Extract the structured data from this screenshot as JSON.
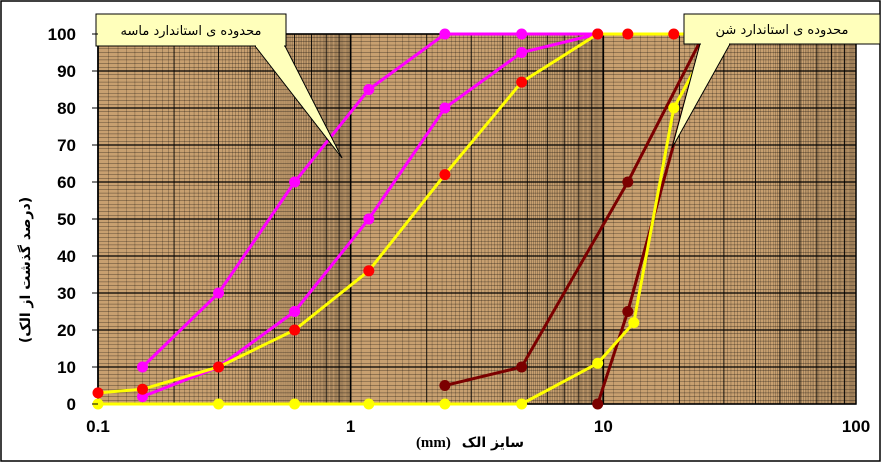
{
  "chart_data": {
    "type": "scatter",
    "x_scale": "log",
    "xlim": [
      0.1,
      100
    ],
    "ylim": [
      0,
      100
    ],
    "xlabel_text": "سایز الک",
    "xlabel_unit": "(mm)",
    "ylabel": "(درصد گذشت از الک)",
    "x_ticks": [
      {
        "value": 0.1,
        "label": "0.1"
      },
      {
        "value": 1,
        "label": "1"
      },
      {
        "value": 10,
        "label": "10"
      },
      {
        "value": 100,
        "label": "100"
      }
    ],
    "y_ticks": [
      0,
      10,
      20,
      30,
      40,
      50,
      60,
      70,
      80,
      90,
      100
    ],
    "grid": true,
    "colors": {
      "plot_background": "#c8a070",
      "grid": "#000000",
      "sand_limit": "#ff00ff",
      "aggregate": "#ffff00",
      "aggregate_marker_red": "#ff0000",
      "gravel_limit": "#7b0000",
      "callout_fill": "#ffffbb"
    },
    "series": [
      {
        "color": "#ff00ff",
        "marker_color": "#ff00ff",
        "x": [
          0.15,
          0.3,
          0.6,
          1.18,
          2.36,
          4.75,
          9.5
        ],
        "y": [
          10,
          30,
          60,
          85,
          100,
          100,
          100
        ]
      },
      {
        "color": "#ff00ff",
        "marker_color": "#ff00ff",
        "x": [
          0.15,
          0.3,
          0.6,
          1.18,
          2.36,
          4.75,
          9.5
        ],
        "y": [
          2,
          10,
          25,
          50,
          80,
          95,
          100
        ]
      },
      {
        "color": "#ffff00",
        "marker_color": "#ff0000",
        "x": [
          0.1,
          0.15,
          0.3,
          0.6,
          1.18,
          2.36,
          4.75,
          9.5,
          12.5,
          19,
          25
        ],
        "y": [
          3,
          4,
          10,
          20,
          36,
          62,
          87,
          100,
          100,
          100,
          100
        ]
      },
      {
        "color": "#7b0000",
        "marker_color": "#7b0000",
        "x": [
          2.36,
          4.75,
          12.5,
          25
        ],
        "y": [
          5,
          10,
          60,
          100
        ]
      },
      {
        "color": "#7b0000",
        "marker_color": "#7b0000",
        "x": [
          9.5,
          12.5,
          25
        ],
        "y": [
          0,
          25,
          100
        ]
      },
      {
        "color": "#ffff00",
        "marker_color": "#ffff00",
        "x": [
          0.1,
          0.3,
          0.6,
          1.18,
          2.36,
          4.75,
          9.5,
          13.2,
          19,
          25,
          28
        ],
        "y": [
          0,
          0,
          0,
          0,
          0,
          0,
          11,
          22,
          80,
          95,
          100
        ]
      }
    ],
    "annotations": [
      {
        "text": "محدوده ی استاندارد ماسه"
      },
      {
        "text": "محدوده ی استاندارد شن"
      }
    ]
  }
}
